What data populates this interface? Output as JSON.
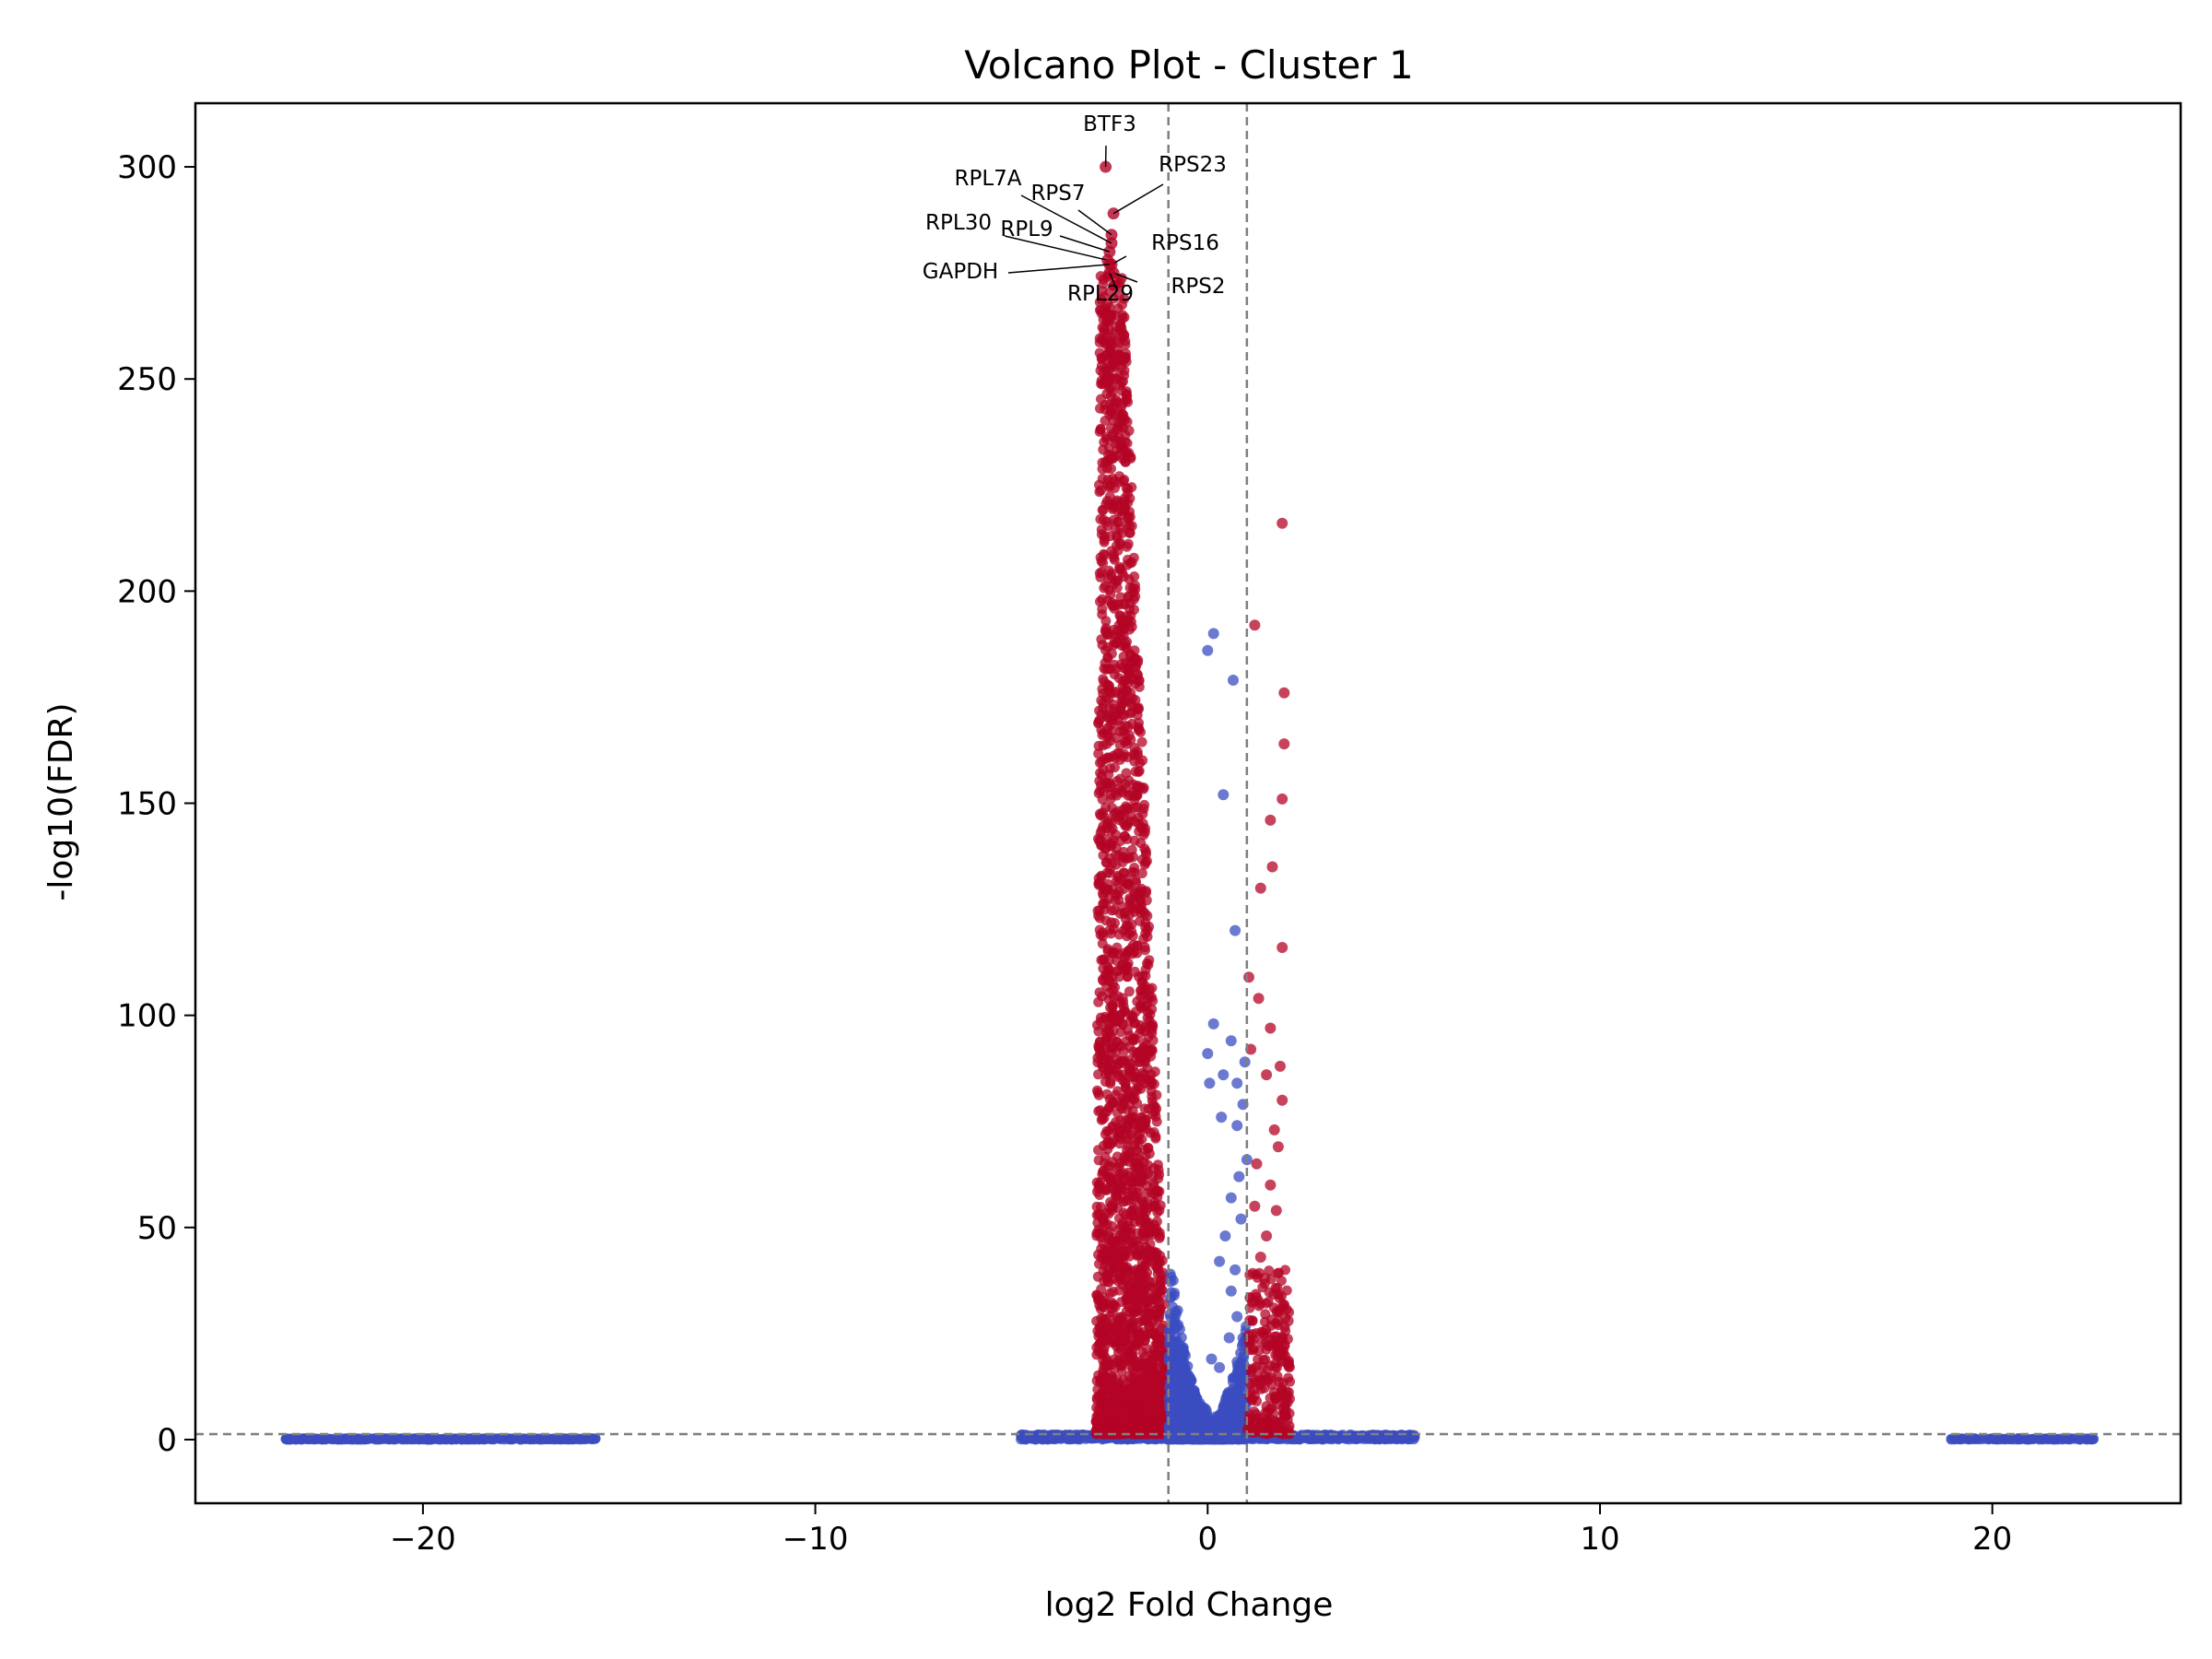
{
  "chart_data": {
    "type": "scatter",
    "title": "Volcano Plot - Cluster 1",
    "xlabel": "log2 Fold Change",
    "ylabel": "-log10(FDR)",
    "xlim": [
      -25.8,
      24.8
    ],
    "ylim": [
      -15,
      315
    ],
    "xticks": [
      -20,
      -10,
      0,
      10,
      20
    ],
    "xtick_labels": [
      "−20",
      "−10",
      "0",
      "10",
      "20"
    ],
    "yticks": [
      0,
      50,
      100,
      150,
      200,
      250,
      300
    ],
    "ytick_labels": [
      "0",
      "50",
      "100",
      "150",
      "200",
      "250",
      "300"
    ],
    "grid": false,
    "thresholds": {
      "log2fc": [
        -1,
        1
      ],
      "neg_log10_fdr": 1.3
    },
    "colors": {
      "significant": "#b40426",
      "not_significant": "#3b4cc0",
      "threshold_line": "#7f7f7f"
    },
    "legend": "none",
    "annotated_points": [
      {
        "gene": "BTF3",
        "x": -2.6,
        "y": 300
      },
      {
        "gene": "RPS23",
        "x": -2.4,
        "y": 289
      },
      {
        "gene": "RPS7",
        "x": -2.45,
        "y": 284
      },
      {
        "gene": "RPL7A",
        "x": -2.45,
        "y": 282
      },
      {
        "gene": "RPL9",
        "x": -2.5,
        "y": 280
      },
      {
        "gene": "RPL30",
        "x": -2.55,
        "y": 278
      },
      {
        "gene": "RPS16",
        "x": -2.45,
        "y": 277
      },
      {
        "gene": "GAPDH",
        "x": -2.5,
        "y": 277
      },
      {
        "gene": "RPS2",
        "x": -2.4,
        "y": 275
      },
      {
        "gene": "RPL29",
        "x": -2.5,
        "y": 275
      }
    ],
    "highlight_points": [
      {
        "x": 1.9,
        "y": 216,
        "significant": true
      },
      {
        "x": 1.2,
        "y": 192,
        "significant": true
      },
      {
        "x": 1.95,
        "y": 176,
        "significant": true
      },
      {
        "x": 1.95,
        "y": 164,
        "significant": true
      },
      {
        "x": 1.9,
        "y": 151,
        "significant": true
      },
      {
        "x": 1.6,
        "y": 146,
        "significant": true
      },
      {
        "x": 1.65,
        "y": 135,
        "significant": true
      },
      {
        "x": 1.35,
        "y": 130,
        "significant": true
      },
      {
        "x": 1.9,
        "y": 116,
        "significant": true
      },
      {
        "x": 1.05,
        "y": 109,
        "significant": true
      },
      {
        "x": 1.3,
        "y": 104,
        "significant": true
      },
      {
        "x": 1.6,
        "y": 97,
        "significant": true
      },
      {
        "x": 1.1,
        "y": 92,
        "significant": true
      },
      {
        "x": 1.85,
        "y": 88,
        "significant": true
      },
      {
        "x": 1.5,
        "y": 86,
        "significant": true
      },
      {
        "x": 1.9,
        "y": 80,
        "significant": true
      },
      {
        "x": 1.7,
        "y": 73,
        "significant": true
      },
      {
        "x": 1.8,
        "y": 69,
        "significant": true
      },
      {
        "x": 1.25,
        "y": 65,
        "significant": true
      },
      {
        "x": 1.6,
        "y": 60,
        "significant": true
      },
      {
        "x": 1.2,
        "y": 55,
        "significant": true
      },
      {
        "x": 1.75,
        "y": 54,
        "significant": true
      },
      {
        "x": 1.5,
        "y": 48,
        "significant": true
      },
      {
        "x": 1.35,
        "y": 43,
        "significant": true
      },
      {
        "x": 1.45,
        "y": 38,
        "significant": true
      },
      {
        "x": 2.05,
        "y": 28,
        "significant": true
      },
      {
        "x": 1.85,
        "y": 4,
        "significant": true
      },
      {
        "x": 0.15,
        "y": 190,
        "significant": false
      },
      {
        "x": 0.0,
        "y": 186,
        "significant": false
      },
      {
        "x": 0.65,
        "y": 179,
        "significant": false
      },
      {
        "x": 0.4,
        "y": 152,
        "significant": false
      },
      {
        "x": 0.7,
        "y": 120,
        "significant": false
      },
      {
        "x": 0.15,
        "y": 98,
        "significant": false
      },
      {
        "x": 0.6,
        "y": 94,
        "significant": false
      },
      {
        "x": 0.0,
        "y": 91,
        "significant": false
      },
      {
        "x": 0.95,
        "y": 89,
        "significant": false
      },
      {
        "x": 0.4,
        "y": 86,
        "significant": false
      },
      {
        "x": 0.05,
        "y": 84,
        "significant": false
      },
      {
        "x": 0.75,
        "y": 84,
        "significant": false
      },
      {
        "x": 0.9,
        "y": 79,
        "significant": false
      },
      {
        "x": 0.35,
        "y": 76,
        "significant": false
      },
      {
        "x": 0.75,
        "y": 74,
        "significant": false
      },
      {
        "x": 1.0,
        "y": 66,
        "significant": false
      },
      {
        "x": 0.8,
        "y": 62,
        "significant": false
      },
      {
        "x": 0.6,
        "y": 57,
        "significant": false
      },
      {
        "x": 0.85,
        "y": 52,
        "significant": false
      },
      {
        "x": 0.45,
        "y": 48,
        "significant": false
      },
      {
        "x": 0.3,
        "y": 42,
        "significant": false
      },
      {
        "x": 0.7,
        "y": 40,
        "significant": false
      },
      {
        "x": 0.6,
        "y": 35,
        "significant": false
      },
      {
        "x": 0.75,
        "y": 29,
        "significant": false
      },
      {
        "x": 0.55,
        "y": 24,
        "significant": false
      },
      {
        "x": 0.1,
        "y": 19,
        "significant": false
      },
      {
        "x": 0.3,
        "y": 17,
        "significant": false
      }
    ],
    "point_groups": [
      {
        "name": "left outlier band",
        "significant": false,
        "x_range": [
          -23.5,
          -15.6
        ],
        "y_range": [
          0,
          0.3
        ],
        "count": 380
      },
      {
        "name": "right outlier band",
        "significant": false,
        "x_range": [
          18.9,
          22.6
        ],
        "y_range": [
          0,
          0.3
        ],
        "count": 120
      },
      {
        "name": "central baseline",
        "significant": false,
        "x_range": [
          -4.8,
          5.3
        ],
        "y_range": [
          0,
          1.2
        ],
        "count": 900
      },
      {
        "name": "down-regulated plume",
        "significant": true,
        "x_range": [
          -3.2,
          -1.0
        ],
        "y_range": [
          1.3,
          275
        ],
        "count": 2600
      },
      {
        "name": "near-zero non-significant (left)",
        "significant": false,
        "x_range": [
          -1.0,
          0.0
        ],
        "y_range": [
          0,
          48
        ],
        "count": 700
      },
      {
        "name": "near-zero non-significant (right)",
        "significant": false,
        "x_range": [
          0.0,
          1.0
        ],
        "y_range": [
          0,
          30
        ],
        "count": 500
      },
      {
        "name": "up-regulated cluster",
        "significant": true,
        "x_range": [
          1.0,
          2.1
        ],
        "y_range": [
          1.3,
          40
        ],
        "count": 260
      }
    ]
  }
}
